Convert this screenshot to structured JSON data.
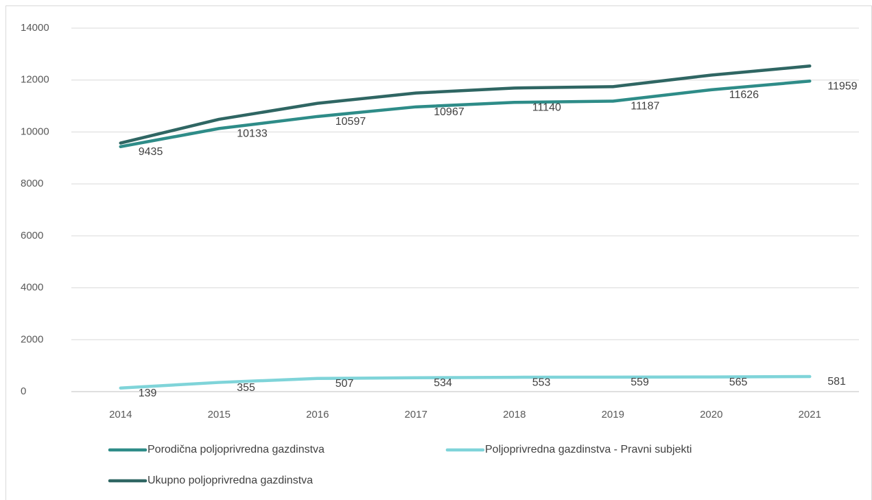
{
  "chart_data": {
    "type": "line",
    "categories": [
      "2014",
      "2015",
      "2016",
      "2017",
      "2018",
      "2019",
      "2020",
      "2021"
    ],
    "series": [
      {
        "name": "Porodična poljoprivredna gazdinstva",
        "color": "#2e8c88",
        "data_labels": true,
        "values": [
          9435,
          10133,
          10597,
          10967,
          11140,
          11187,
          11626,
          11959
        ]
      },
      {
        "name": "Poljoprivredna gazdinstva - Pravni subjekti",
        "color": "#7fd4d9",
        "data_labels": true,
        "values": [
          139,
          355,
          507,
          534,
          553,
          559,
          565,
          581
        ]
      },
      {
        "name": "Ukupno poljoprivredna gazdinstva",
        "color": "#2f6663",
        "data_labels": false,
        "values": [
          9574,
          10488,
          11104,
          11501,
          11693,
          11746,
          12191,
          12540
        ]
      }
    ],
    "ylim": [
      0,
      14000
    ],
    "yticks": [
      0,
      2000,
      4000,
      6000,
      8000,
      10000,
      12000,
      14000
    ],
    "grid": true
  }
}
